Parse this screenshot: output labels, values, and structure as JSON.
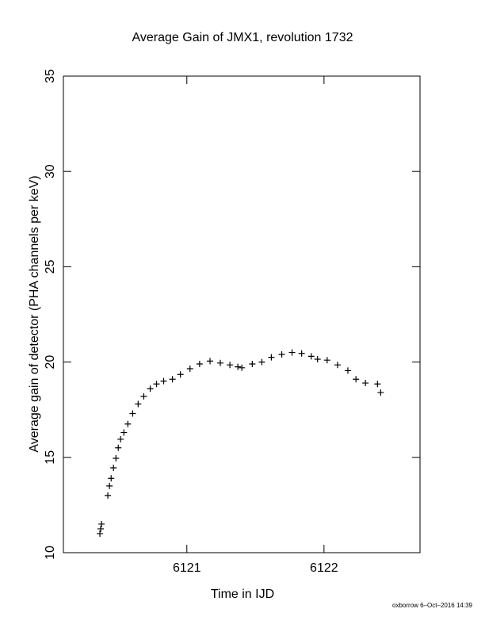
{
  "chart_data": {
    "type": "scatter",
    "title": "Average Gain of JMX1, revolution 1732",
    "x_label": "Time in IJD",
    "y_label": "Average gain of detector (PHA channels per keV)",
    "footer": "oxborrow  6–Oct–2016 14:39",
    "marker": "+",
    "color": "#000000",
    "xlim": [
      6120.1,
      6122.7
    ],
    "xticks": [
      6121,
      6122
    ],
    "ylim": [
      10,
      35
    ],
    "yticks": [
      10,
      15,
      20,
      25,
      30,
      35
    ],
    "x": [
      6120.366,
      6120.372,
      6120.378,
      6120.424,
      6120.436,
      6120.448,
      6120.465,
      6120.483,
      6120.5,
      6120.517,
      6120.541,
      6120.57,
      6120.605,
      6120.645,
      6120.686,
      6120.733,
      6120.779,
      6120.831,
      6120.895,
      6120.953,
      6121.023,
      6121.093,
      6121.169,
      6121.244,
      6121.314,
      6121.372,
      6121.401,
      6121.477,
      6121.547,
      6121.616,
      6121.692,
      6121.767,
      6121.837,
      6121.907,
      6121.953,
      6122.023,
      6122.099,
      6122.174,
      6122.233,
      6122.302,
      6122.39,
      6122.413
    ],
    "values": [
      11.0,
      11.25,
      11.5,
      13.0,
      13.5,
      13.9,
      14.45,
      14.95,
      15.5,
      15.95,
      16.3,
      16.75,
      17.3,
      17.8,
      18.2,
      18.6,
      18.85,
      19.0,
      19.1,
      19.35,
      19.65,
      19.9,
      20.05,
      19.95,
      19.85,
      19.75,
      19.7,
      19.9,
      20.0,
      20.25,
      20.4,
      20.5,
      20.45,
      20.3,
      20.15,
      20.1,
      19.85,
      19.55,
      19.1,
      18.9,
      18.85,
      18.4
    ]
  }
}
